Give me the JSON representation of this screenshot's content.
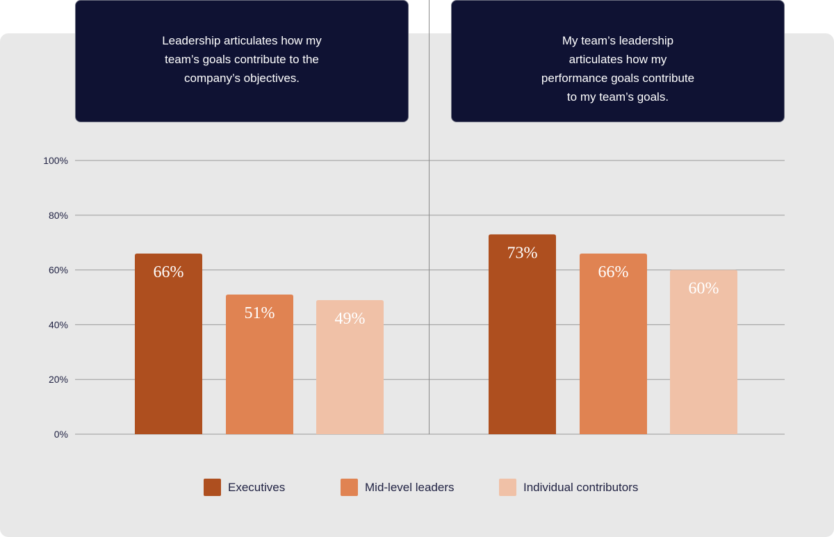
{
  "chart_data": [
    {
      "type": "bar",
      "title": "Leadership articulates how my team’s goals contribute to the company’s objectives.",
      "categories": [
        "Executives",
        "Mid-level leaders",
        "Individual contributors"
      ],
      "values": [
        66,
        51,
        49
      ],
      "value_labels": [
        "66%",
        "51%",
        "49%"
      ],
      "ylim": [
        0,
        100
      ],
      "yticks": [
        0,
        20,
        40,
        60,
        80,
        100
      ],
      "ytick_labels": [
        "0%",
        "20%",
        "40%",
        "60%",
        "80%",
        "100%"
      ],
      "grid": true
    },
    {
      "type": "bar",
      "title": "My team’s leadership articulates how my performance goals contribute to my team’s goals.",
      "categories": [
        "Executives",
        "Mid-level leaders",
        "Individual contributors"
      ],
      "values": [
        73,
        66,
        60
      ],
      "value_labels": [
        "73%",
        "66%",
        "60%"
      ],
      "ylim": [
        0,
        100
      ],
      "yticks": [
        0,
        20,
        40,
        60,
        80,
        100
      ],
      "ytick_labels": [
        "0%",
        "20%",
        "40%",
        "60%",
        "80%",
        "100%"
      ],
      "grid": true
    }
  ],
  "legend": {
    "position": "bottom",
    "items": [
      {
        "label": "Executives",
        "color": "#ae4f1f"
      },
      {
        "label": "Mid-level leaders",
        "color": "#e08352"
      },
      {
        "label": "Individual contributors",
        "color": "#f0c1a7"
      }
    ]
  },
  "colors": {
    "background_panel": "#e8e8e8",
    "title_box": "#0f1233",
    "gridline": "#9a9a9a",
    "text": "#1f2142",
    "bar_label": "#ffffff"
  }
}
